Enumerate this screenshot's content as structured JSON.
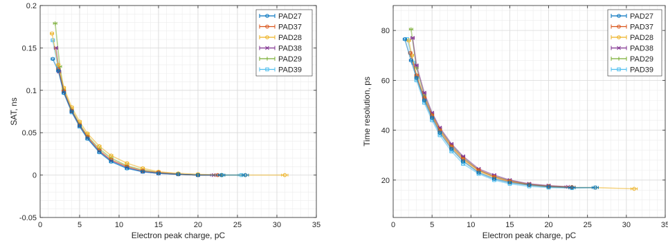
{
  "chart_data": [
    {
      "type": "scatter",
      "xlabel": "Electron peak charge, pC",
      "ylabel": "SAT, ns",
      "xlim": [
        0,
        35
      ],
      "ylim": [
        -0.05,
        0.2
      ],
      "xticks": [
        0,
        5,
        10,
        15,
        20,
        25,
        30,
        35
      ],
      "yticks": [
        -0.05,
        0,
        0.05,
        0.1,
        0.15,
        0.2
      ],
      "ytick_labels": [
        "-0.05",
        "0",
        "0.05",
        "0.1",
        "0.15",
        "0.2"
      ],
      "grid": true,
      "minor_grid": true,
      "error_bars": "horizontal",
      "legend_position": "top-right",
      "series": [
        {
          "name": "PAD27",
          "color": "#0072bd",
          "x": [
            1.6,
            2.3,
            3.0,
            4.0,
            5.0,
            6.0,
            7.5,
            9.0,
            11.0,
            13.0,
            15.0,
            17.5,
            20.0,
            23.0,
            26.0
          ],
          "y": [
            0.137,
            0.123,
            0.097,
            0.075,
            0.058,
            0.043,
            0.027,
            0.016,
            0.008,
            0.004,
            0.002,
            0.001,
            0.0,
            0.0,
            0.0
          ]
        },
        {
          "name": "PAD37",
          "color": "#d95319",
          "x": [
            2.3,
            3.0,
            4.0,
            5.0,
            6.0,
            7.5,
            9.0,
            11.0,
            13.0,
            15.0,
            17.5,
            20.0,
            22.5
          ],
          "y": [
            0.125,
            0.099,
            0.076,
            0.059,
            0.045,
            0.029,
            0.018,
            0.01,
            0.005,
            0.003,
            0.001,
            0.0,
            0.0
          ]
        },
        {
          "name": "PAD28",
          "color": "#edb120",
          "x": [
            1.5,
            2.3,
            3.0,
            4.0,
            5.0,
            6.0,
            7.5,
            9.0,
            11.0,
            13.0,
            15.0,
            17.5,
            20.0,
            23.0,
            26.0,
            31.0
          ],
          "y": [
            0.167,
            0.13,
            0.103,
            0.08,
            0.063,
            0.049,
            0.034,
            0.023,
            0.014,
            0.008,
            0.004,
            0.002,
            0.001,
            0.0,
            0.0,
            0.0
          ]
        },
        {
          "name": "PAD38",
          "color": "#7e2f8e",
          "x": [
            2.0,
            2.4,
            3.0,
            4.0,
            5.0,
            6.0,
            7.5,
            9.0,
            11.0,
            13.0,
            15.0,
            17.5,
            20.0,
            22.0
          ],
          "y": [
            0.15,
            0.122,
            0.098,
            0.075,
            0.058,
            0.044,
            0.028,
            0.017,
            0.009,
            0.004,
            0.002,
            0.001,
            0.0,
            0.0
          ]
        },
        {
          "name": "PAD29",
          "color": "#77ac30",
          "x": [
            1.9,
            2.5,
            3.0,
            4.0,
            5.0,
            6.0,
            7.5,
            9.0,
            11.0,
            13.0,
            15.0,
            17.5,
            20.0,
            23.0
          ],
          "y": [
            0.179,
            0.128,
            0.1,
            0.077,
            0.06,
            0.046,
            0.031,
            0.02,
            0.011,
            0.006,
            0.003,
            0.001,
            0.0,
            0.0
          ]
        },
        {
          "name": "PAD39",
          "color": "#4dbeee",
          "x": [
            1.6,
            2.3,
            3.0,
            4.0,
            5.0,
            6.0,
            7.5,
            9.0,
            11.0,
            13.0,
            15.0,
            17.5,
            20.0,
            23.0,
            25.5
          ],
          "y": [
            0.159,
            0.126,
            0.097,
            0.074,
            0.057,
            0.043,
            0.027,
            0.016,
            0.008,
            0.004,
            0.002,
            0.001,
            0.0,
            0.0,
            0.0
          ]
        }
      ]
    },
    {
      "type": "scatter",
      "xlabel": "Electron peak charge, pC",
      "ylabel": "Time resolution, ps",
      "xlim": [
        0,
        35
      ],
      "ylim": [
        5,
        90
      ],
      "xticks": [
        0,
        5,
        10,
        15,
        20,
        25,
        30,
        35
      ],
      "yticks": [
        20,
        40,
        60,
        80
      ],
      "ytick_labels": [
        "20",
        "40",
        "60",
        "80"
      ],
      "grid": true,
      "minor_grid": true,
      "error_bars": "horizontal",
      "legend_position": "top-right",
      "series": [
        {
          "name": "PAD27",
          "color": "#0072bd",
          "x": [
            1.5,
            2.3,
            3.0,
            4.0,
            5.0,
            6.0,
            7.5,
            9.0,
            11.0,
            13.0,
            15.0,
            17.5,
            20.0,
            23.0,
            26.0
          ],
          "y": [
            76.5,
            68.0,
            61.0,
            52.0,
            45.0,
            39.0,
            32.5,
            27.5,
            23.0,
            20.5,
            19.0,
            18.0,
            17.3,
            17.0,
            17.0
          ]
        },
        {
          "name": "PAD37",
          "color": "#d95319",
          "x": [
            2.2,
            3.0,
            4.0,
            5.0,
            6.0,
            7.5,
            9.0,
            11.0,
            13.0,
            15.0,
            17.5,
            20.0,
            23.0
          ],
          "y": [
            71.0,
            62.0,
            53.0,
            46.0,
            40.0,
            33.5,
            28.5,
            24.0,
            21.3,
            19.5,
            18.2,
            17.5,
            17.2
          ]
        },
        {
          "name": "PAD28",
          "color": "#edb120",
          "x": [
            2.0,
            2.4,
            3.0,
            4.0,
            5.0,
            6.0,
            7.5,
            9.0,
            11.0,
            13.0,
            15.0,
            17.5,
            20.0,
            23.0,
            26.0,
            31.0
          ],
          "y": [
            76.0,
            70.0,
            61.5,
            52.5,
            45.5,
            39.5,
            33.0,
            28.0,
            23.5,
            21.0,
            19.3,
            18.0,
            17.3,
            17.0,
            17.0,
            16.5
          ]
        },
        {
          "name": "PAD38",
          "color": "#7e2f8e",
          "x": [
            2.5,
            3.0,
            4.0,
            5.0,
            6.0,
            7.5,
            9.0,
            11.0,
            13.0,
            15.0,
            17.5,
            20.0,
            22.5
          ],
          "y": [
            77.0,
            66.0,
            55.0,
            47.0,
            41.0,
            34.5,
            29.5,
            24.5,
            22.0,
            20.0,
            18.5,
            17.8,
            17.3
          ]
        },
        {
          "name": "PAD29",
          "color": "#77ac30",
          "x": [
            2.3,
            3.0,
            4.0,
            5.0,
            6.0,
            7.5,
            9.0,
            11.0,
            13.0,
            15.0,
            17.5,
            20.0,
            23.0
          ],
          "y": [
            80.5,
            65.0,
            54.0,
            46.5,
            40.5,
            34.0,
            29.0,
            24.0,
            21.5,
            19.8,
            18.3,
            17.6,
            17.2
          ]
        },
        {
          "name": "PAD39",
          "color": "#4dbeee",
          "x": [
            1.8,
            2.6,
            3.0,
            4.0,
            5.0,
            6.0,
            7.5,
            9.0,
            11.0,
            13.0,
            15.0,
            17.5,
            20.0,
            23.0,
            26.0
          ],
          "y": [
            76.5,
            67.0,
            60.0,
            51.0,
            44.0,
            38.0,
            31.5,
            26.5,
            22.5,
            20.0,
            18.5,
            17.5,
            17.0,
            16.8,
            17.0
          ]
        }
      ]
    }
  ]
}
